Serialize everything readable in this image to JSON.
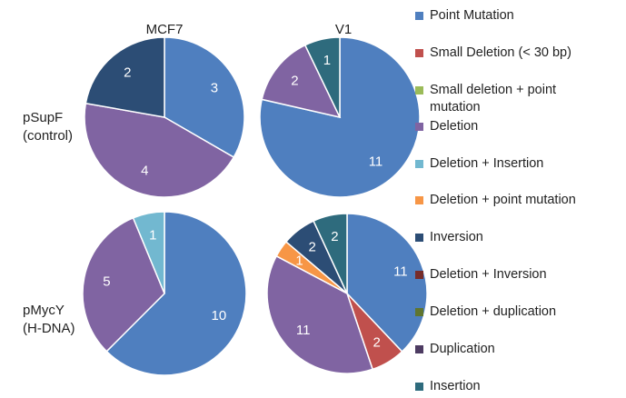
{
  "columns": [
    "MCF7",
    "V1"
  ],
  "rows": [
    [
      "pSupF",
      "(control)"
    ],
    [
      "pMycY",
      "(H-DNA)"
    ]
  ],
  "legend": {
    "categories": [
      "Point Mutation",
      "Small Deletion (< 30 bp)",
      "Small deletion + point mutation",
      "Deletion",
      "Deletion + Insertion",
      "Deletion + point mutation",
      "Inversion",
      "Deletion + Inversion",
      "Deletion + duplication",
      "Duplication",
      "Insertion"
    ],
    "colors": [
      "#4f7fbf",
      "#c0504d",
      "#9bbb59",
      "#8064a2",
      "#72b8d0",
      "#f79646",
      "#2c4d75",
      "#772c2a",
      "#5f7530",
      "#4d3b62",
      "#2e6b7d"
    ]
  },
  "chart_data": [
    {
      "type": "pie",
      "values": [
        3,
        null,
        null,
        4,
        null,
        null,
        2,
        null,
        null,
        null,
        null
      ]
    },
    {
      "type": "pie",
      "values": [
        11,
        null,
        null,
        2,
        null,
        null,
        null,
        null,
        null,
        null,
        1
      ]
    },
    {
      "type": "pie",
      "values": [
        10,
        null,
        null,
        5,
        1,
        null,
        null,
        null,
        null,
        null,
        null
      ]
    },
    {
      "type": "pie",
      "values": [
        11,
        2,
        null,
        11,
        null,
        1,
        2,
        null,
        null,
        null,
        2
      ]
    }
  ]
}
